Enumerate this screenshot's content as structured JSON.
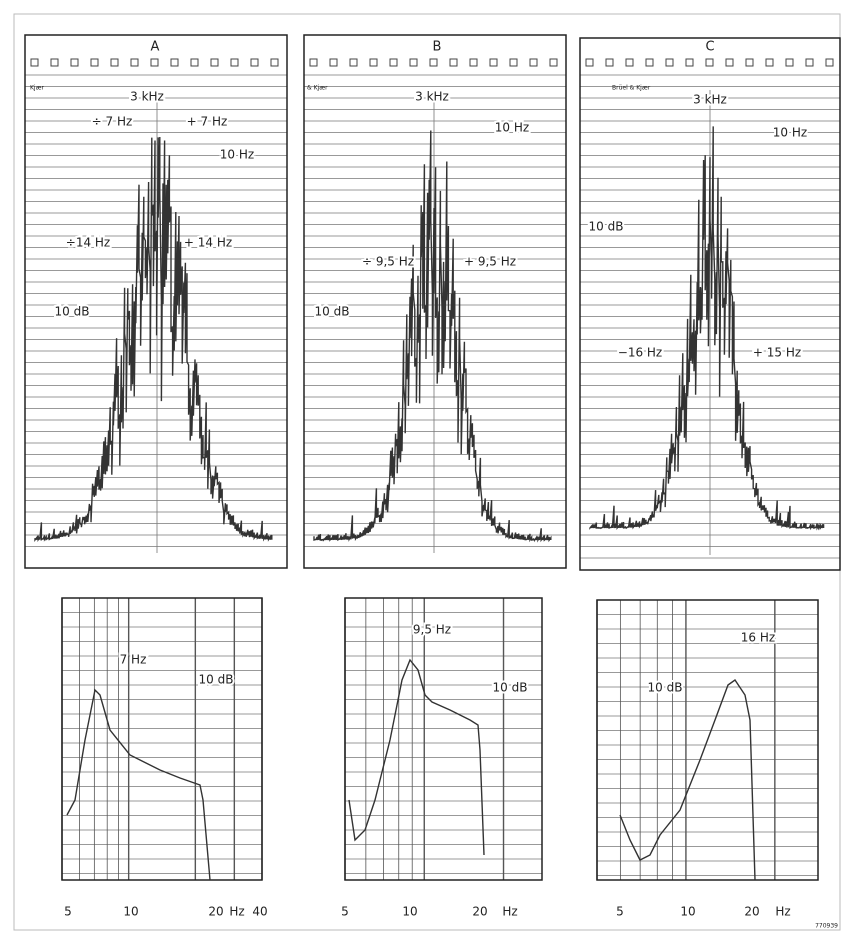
{
  "top_panels": [
    {
      "letter": "A",
      "brand": "Kjær",
      "annotations": [
        "3 kHz",
        "÷ 7 Hz",
        "+ 7 Hz",
        "10 Hz",
        "÷14 Hz",
        "+ 14 Hz",
        "10 dB"
      ]
    },
    {
      "letter": "B",
      "brand": "& Kjær",
      "annotations": [
        "3 kHz",
        "10 Hz",
        "÷ 9,5 Hz",
        "+ 9,5 Hz",
        "10 dB"
      ]
    },
    {
      "letter": "C",
      "brand": "Brüel & Kjær",
      "annotations": [
        "3 kHz",
        "10 Hz",
        "10 dB",
        "−16 Hz",
        "+ 15 Hz"
      ]
    }
  ],
  "bottom_panels": [
    {
      "annotations": [
        "7 Hz",
        "10 dB"
      ],
      "x_labels": [
        "5",
        "10",
        "20",
        "Hz",
        "40"
      ]
    },
    {
      "annotations": [
        "9,5 Hz",
        "10 dB"
      ],
      "x_labels": [
        "5",
        "10",
        "20",
        "Hz"
      ]
    },
    {
      "annotations": [
        "16 Hz",
        "10 dB"
      ],
      "x_labels": [
        "5",
        "10",
        "20",
        "Hz"
      ]
    }
  ],
  "figure_id": "770939"
}
